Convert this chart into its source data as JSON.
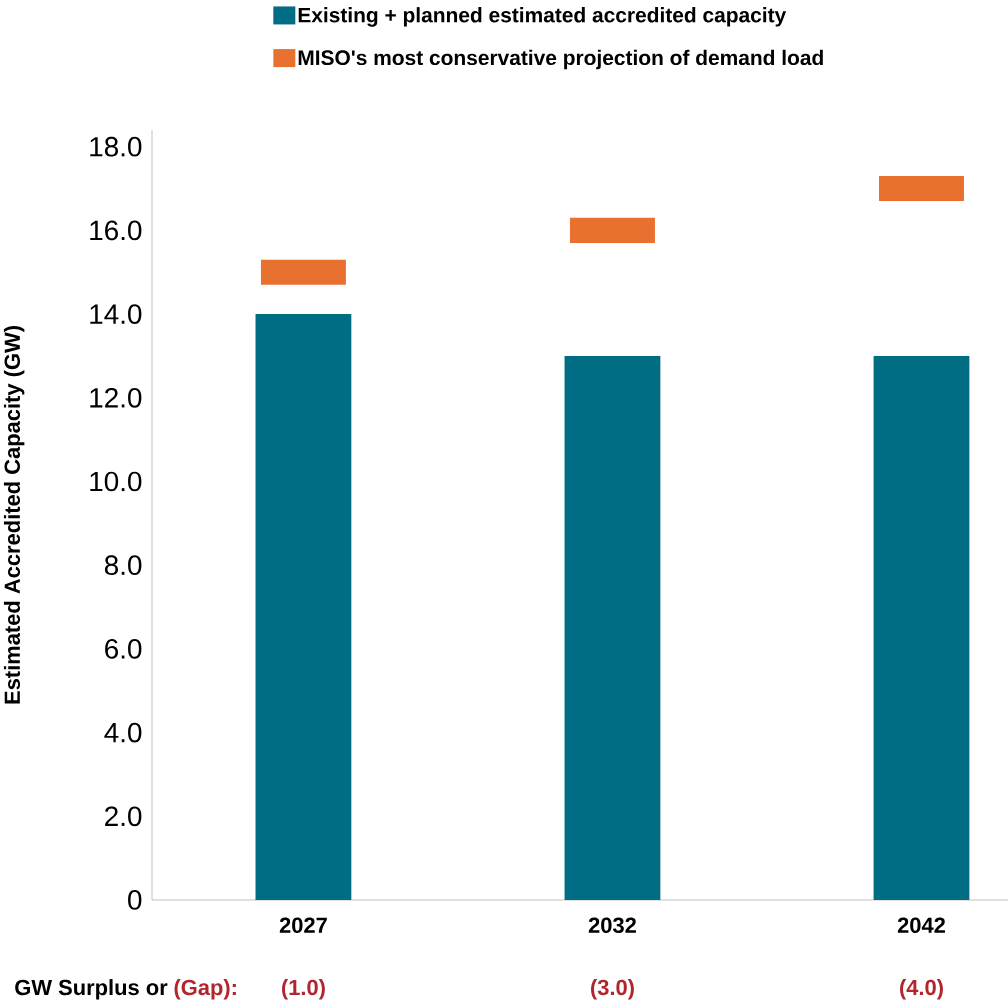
{
  "chart_data": {
    "type": "bar",
    "ylabel": "Estimated Accredited Capacity (GW)",
    "categories": [
      "2027",
      "2032",
      "2042"
    ],
    "series": [
      {
        "name": "Existing + planned estimated accredited capacity",
        "color": "#006d84",
        "values": [
          14,
          13,
          13
        ]
      },
      {
        "name": "MISO's most conservative projection of demand load",
        "color": "#e87130",
        "values": [
          0.6,
          0.6,
          0.6
        ],
        "base": [
          14.7,
          15.7,
          16.7
        ]
      }
    ],
    "ylim": [
      0,
      18.4
    ],
    "yticks": [
      0,
      {
        "value": 2,
        "label": "2.0"
      },
      {
        "value": 4,
        "label": "4.0"
      },
      {
        "value": 6,
        "label": "6.0"
      },
      {
        "value": 8,
        "label": "8.0"
      },
      {
        "value": 10,
        "label": "10.0"
      },
      {
        "value": 12,
        "label": "12.0"
      },
      {
        "value": 14,
        "label": "14.0"
      },
      {
        "value": 16,
        "label": "16.0"
      },
      {
        "value": 18,
        "label": "18.0"
      }
    ],
    "legend": "top",
    "grid": false,
    "annotations": [
      "GW Surplus or",
      "(Gap):",
      "(1.0)",
      "(3.0)",
      "(4.0)"
    ]
  }
}
